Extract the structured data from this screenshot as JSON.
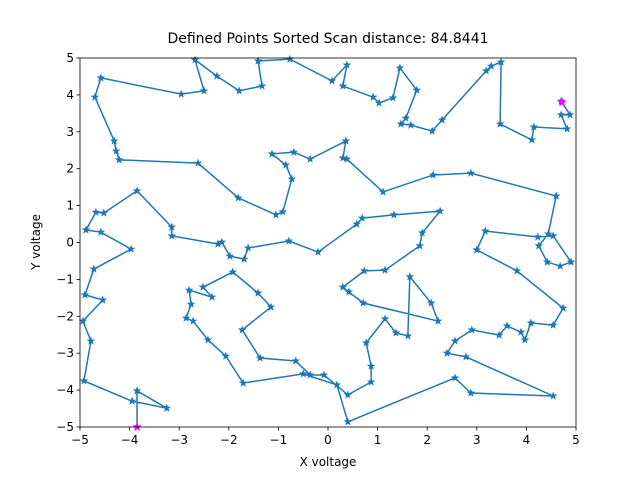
{
  "chart_data": {
    "type": "line",
    "title": "Defined Points Sorted Scan distance: 84.8441",
    "xlabel": "X voltage",
    "ylabel": "Y voltage",
    "xlim": [
      -5,
      5
    ],
    "ylim": [
      -5,
      5
    ],
    "xticks": [
      {
        "value": -5,
        "label": "−5"
      },
      {
        "value": -4,
        "label": "−4"
      },
      {
        "value": -3,
        "label": "−3"
      },
      {
        "value": -2,
        "label": "−2"
      },
      {
        "value": -1,
        "label": "−1"
      },
      0,
      1,
      2,
      3,
      4,
      5
    ],
    "yticks": [
      {
        "value": -5,
        "label": "−5"
      },
      {
        "value": -4,
        "label": "−4"
      },
      {
        "value": -3,
        "label": "−3"
      },
      {
        "value": -2,
        "label": "−2"
      },
      {
        "value": -1,
        "label": "−1"
      },
      0,
      1,
      2,
      3,
      4,
      5
    ],
    "x": [
      4.7,
      4.88,
      4.7,
      4.82,
      4.15,
      4.11,
      3.47,
      3.49,
      3.29,
      3.19,
      2.3,
      2.1,
      1.67,
      1.47,
      1.57,
      1.79,
      1.45,
      1.31,
      1.03,
      0.91,
      0.3,
      0.38,
      0.08,
      -0.77,
      -1.41,
      -1.33,
      -1.79,
      -2.24,
      -2.68,
      -2.5,
      -2.96,
      -4.58,
      -4.7,
      -4.31,
      -4.27,
      -4.21,
      -2.62,
      -1.81,
      -1.05,
      -0.91,
      -0.73,
      -0.85,
      -1.13,
      -0.69,
      -0.36,
      0.36,
      0.3,
      0.38,
      1.11,
      2.12,
      2.88,
      4.6,
      4.44,
      4.25,
      4.42,
      4.68,
      4.9,
      4.54,
      4.23,
      3.17,
      3.0,
      3.81,
      4.74,
      4.54,
      4.09,
      3.97,
      3.89,
      3.61,
      3.45,
      2.9,
      2.56,
      2.4,
      2.78,
      4.54,
      2.88,
      2.56,
      0.4,
      0.18,
      -0.5,
      -1.71,
      -2.06,
      -2.42,
      -2.72,
      -2.86,
      -2.76,
      -2.8,
      -2.34,
      -2.52,
      -1.92,
      -1.41,
      -1.15,
      -1.73,
      -1.37,
      -0.65,
      -0.36,
      -0.08,
      0.4,
      0.87,
      0.87,
      0.77,
      1.15,
      1.37,
      1.61,
      1.65,
      2.08,
      2.22,
      0.71,
      0.42,
      0.3,
      0.73,
      1.15,
      1.85,
      1.9,
      2.26,
      1.33,
      0.69,
      0.58,
      -0.2,
      -0.79,
      -1.61,
      -1.69,
      -1.98,
      -2.14,
      -2.22,
      -3.15,
      -3.15,
      -3.85,
      -4.52,
      -4.68,
      -4.88,
      -4.58,
      -3.97,
      -4.72,
      -4.9,
      -4.54,
      -4.94,
      -4.78,
      -4.92,
      -3.95,
      -3.25,
      -3.85,
      -3.85
    ],
    "series": [
      {
        "color": "#1f77b4",
        "values": [
          3.83,
          3.46,
          3.46,
          3.08,
          3.13,
          2.78,
          3.21,
          4.89,
          4.78,
          4.65,
          3.32,
          3.02,
          3.18,
          3.21,
          3.37,
          4.13,
          4.73,
          3.92,
          3.78,
          3.94,
          4.24,
          4.81,
          4.38,
          4.97,
          4.92,
          4.24,
          4.11,
          4.51,
          4.95,
          4.11,
          4.02,
          4.46,
          3.94,
          2.75,
          2.48,
          2.24,
          2.15,
          1.21,
          0.75,
          0.83,
          1.72,
          2.1,
          2.4,
          2.45,
          2.26,
          2.75,
          2.29,
          2.26,
          1.37,
          1.83,
          1.88,
          1.26,
          0.23,
          -0.09,
          -0.53,
          -0.64,
          -0.53,
          0.18,
          0.15,
          0.31,
          -0.2,
          -0.77,
          -1.78,
          -2.24,
          -2.18,
          -2.64,
          -2.43,
          -2.26,
          -2.51,
          -2.37,
          -2.67,
          -3.0,
          -3.1,
          -4.16,
          -4.08,
          -3.67,
          -4.86,
          -3.86,
          -3.56,
          -3.81,
          -3.08,
          -2.64,
          -2.13,
          -2.05,
          -1.67,
          -1.29,
          -1.48,
          -1.21,
          -0.8,
          -1.37,
          -1.75,
          -2.37,
          -3.13,
          -3.21,
          -3.59,
          -3.59,
          -4.13,
          -3.78,
          -3.35,
          -2.72,
          -2.07,
          -2.45,
          -2.53,
          -0.93,
          -1.64,
          -2.13,
          -1.64,
          -1.34,
          -1.21,
          -0.77,
          -0.75,
          -0.09,
          0.26,
          0.85,
          0.75,
          0.66,
          0.5,
          -0.26,
          0.04,
          -0.15,
          -0.45,
          -0.37,
          0.01,
          -0.04,
          0.18,
          0.42,
          1.4,
          0.8,
          0.82,
          0.34,
          0.28,
          -0.18,
          -0.72,
          -1.42,
          -1.56,
          -2.13,
          -2.67,
          -3.75,
          -4.3,
          -4.49,
          -4.02,
          -5.0
        ]
      }
    ],
    "highlight": {
      "color": "#ff00ff",
      "x": [
        4.72,
        -3.85
      ],
      "y": [
        3.8,
        -5.0
      ]
    }
  }
}
